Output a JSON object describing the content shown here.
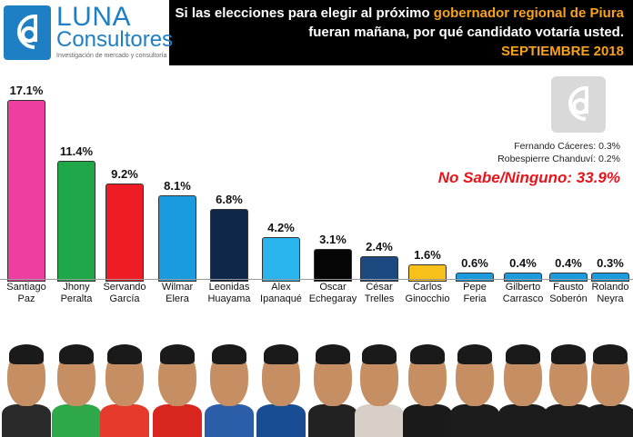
{
  "header": {
    "logo": {
      "name": "LUNA",
      "sub": "Consultores",
      "tagline": "Investigación de mercado y consultoría"
    },
    "headline_pre": "Si las elecciones para elegir al próximo ",
    "headline_highlight": "gobernador regional de Piura",
    "headline_post": "fueran mañana, por qué candidato votaría usted.",
    "date": "SEPTIEMBRE 2018"
  },
  "notes": {
    "line1": "Fernando Cáceres: 0.3%",
    "line2": "Robespierre Chanduví: 0.2%",
    "no_sabe": "No Sabe/Ninguno: 33.9%"
  },
  "chart_data": {
    "type": "bar",
    "title": "Si las elecciones para elegir al próximo gobernador regional de Piura fueran mañana, por qué candidato votaría usted. SEPTIEMBRE 2018",
    "categories": [
      "Santiago Paz",
      "Jhony Peralta",
      "Servando García",
      "Wilmar Elera",
      "Leonidas Huayama",
      "Alex Ipanaqué",
      "Oscar Echegaray",
      "César Trelles",
      "Carlos Ginocchio",
      "Pepe Feria",
      "Gilberto Carrasco",
      "Fausto Soberón",
      "Rolando Neyra"
    ],
    "values": [
      17.1,
      11.4,
      9.2,
      8.1,
      6.8,
      4.2,
      3.1,
      2.4,
      1.6,
      0.6,
      0.4,
      0.4,
      0.3
    ],
    "value_labels": [
      "17.1%",
      "11.4%",
      "9.2%",
      "8.1%",
      "6.8%",
      "4.2%",
      "3.1%",
      "2.4%",
      "1.6%",
      "0.6%",
      "0.4%",
      "0.4%",
      "0.3%"
    ],
    "colors": [
      "#ee3fa0",
      "#1fa84a",
      "#ee1c25",
      "#1a9be0",
      "#0f2748",
      "#2ab4ee",
      "#050505",
      "#1c4a80",
      "#f8c01a",
      "#1a9be0",
      "#1a9be0",
      "#1a9be0",
      "#1a9be0"
    ],
    "annotations": [
      "Fernando Cáceres: 0.3%",
      "Robespierre Chanduví: 0.2%",
      "No Sabe/Ninguno: 33.9%"
    ],
    "xlabel": "",
    "ylabel": "",
    "ylim": [
      0,
      18
    ],
    "grid": false,
    "legend": "none"
  },
  "labels": [
    [
      "Santiago",
      "Paz"
    ],
    [
      "Jhony",
      "Peralta"
    ],
    [
      "Servando",
      "García"
    ],
    [
      "Wilmar",
      "Elera"
    ],
    [
      "Leonidas",
      "Huayama"
    ],
    [
      "Alex",
      "Ipanaqué"
    ],
    [
      "Oscar",
      "Echegaray"
    ],
    [
      "César",
      "Trelles"
    ],
    [
      "Carlos",
      "Ginocchio"
    ],
    [
      "Pepe",
      "Feria"
    ],
    [
      "Gilberto",
      "Carrasco"
    ],
    [
      "Fausto",
      "Soberón"
    ],
    [
      "Rolando",
      "Neyra"
    ]
  ],
  "photos": {
    "shirt_colors": [
      "#2a2a2a",
      "#2fa84a",
      "#e53a2c",
      "#d8261f",
      "#2b5da8",
      "#1a4c94",
      "#222222",
      "#d7cfc8",
      "#1a1a1a",
      "#1c1c1c",
      "#1c1c1c",
      "#1c1c1c",
      "#1c1c1c"
    ]
  }
}
